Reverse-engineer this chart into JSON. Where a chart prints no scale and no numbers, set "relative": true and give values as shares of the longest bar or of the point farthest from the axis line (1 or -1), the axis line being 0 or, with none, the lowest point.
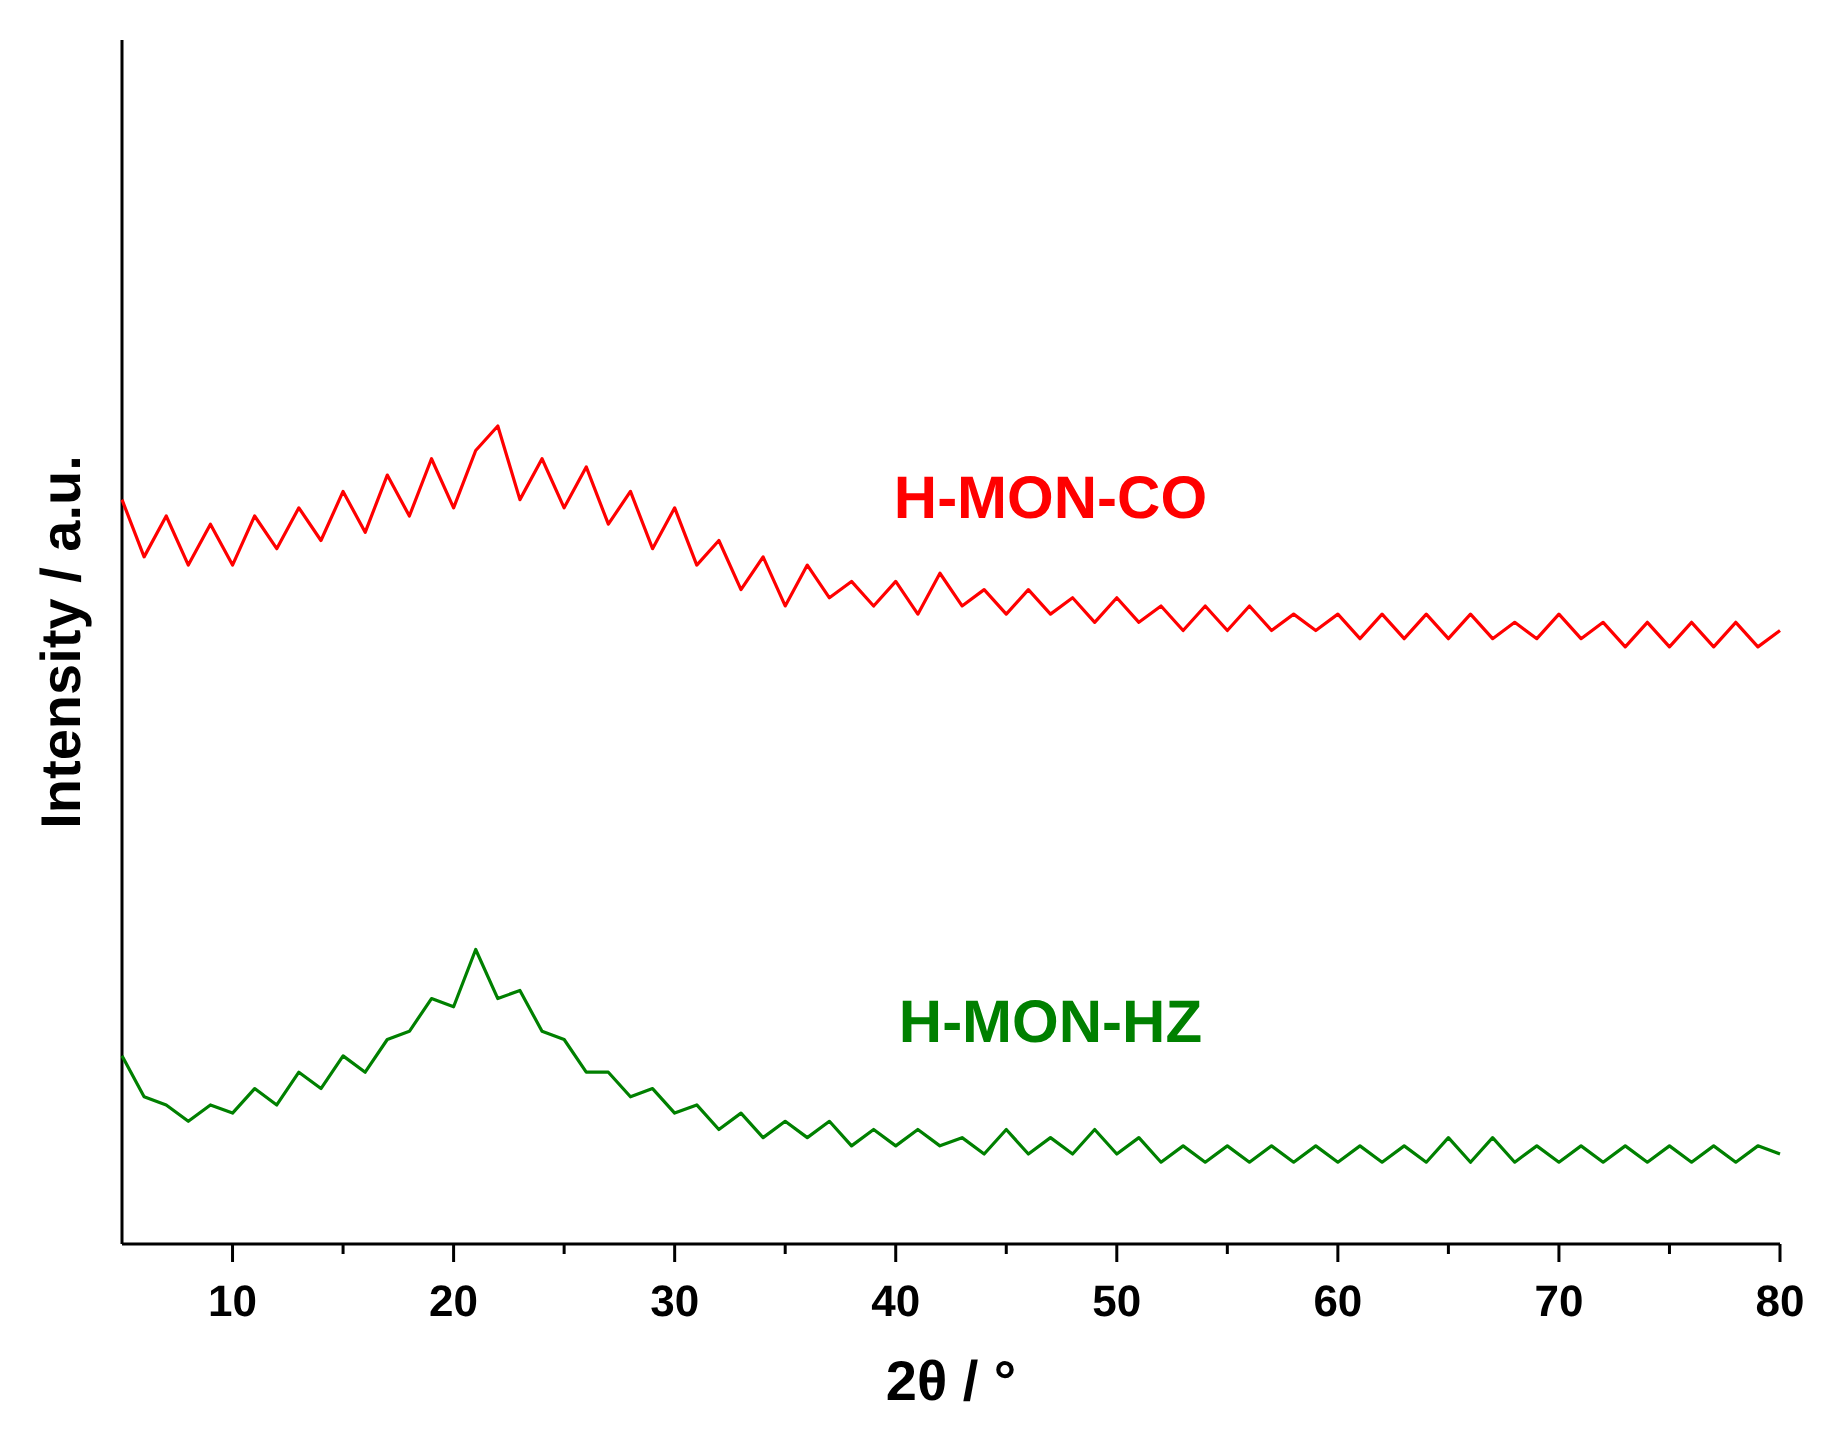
{
  "chart_data": {
    "type": "line",
    "relative": true,
    "xlabel": "2θ / °",
    "ylabel": "Intensity / a.u.",
    "xlim": [
      5,
      80
    ],
    "xticks": [
      10,
      {
        "value": 15,
        "label": null
      },
      20,
      {
        "value": 25,
        "label": null
      },
      30,
      {
        "value": 35,
        "label": null
      },
      40,
      {
        "value": 45,
        "label": null
      },
      50,
      {
        "value": 55,
        "label": null
      },
      60,
      {
        "value": 65,
        "label": null
      },
      70,
      {
        "value": 75,
        "label": null
      },
      80
    ],
    "x": [
      5,
      6,
      7,
      8,
      9,
      10,
      11,
      12,
      13,
      14,
      15,
      16,
      17,
      18,
      19,
      20,
      21,
      22,
      23,
      24,
      25,
      26,
      27,
      28,
      29,
      30,
      31,
      32,
      33,
      34,
      35,
      36,
      37,
      38,
      39,
      40,
      41,
      42,
      43,
      44,
      45,
      46,
      47,
      48,
      49,
      50,
      51,
      52,
      53,
      54,
      55,
      56,
      57,
      58,
      59,
      60,
      61,
      62,
      63,
      64,
      65,
      66,
      67,
      68,
      69,
      70,
      71,
      72,
      73,
      74,
      75,
      76,
      77,
      78,
      79,
      80
    ],
    "series": [
      {
        "name": "H-MON-CO",
        "color": "#ff0000",
        "values": [
          0.91,
          0.84,
          0.89,
          0.83,
          0.88,
          0.83,
          0.89,
          0.85,
          0.9,
          0.86,
          0.92,
          0.87,
          0.94,
          0.89,
          0.96,
          0.9,
          0.97,
          1.0,
          0.91,
          0.96,
          0.9,
          0.95,
          0.88,
          0.92,
          0.85,
          0.9,
          0.83,
          0.86,
          0.8,
          0.84,
          0.78,
          0.83,
          0.79,
          0.81,
          0.78,
          0.81,
          0.77,
          0.82,
          0.78,
          0.8,
          0.77,
          0.8,
          0.77,
          0.79,
          0.76,
          0.79,
          0.76,
          0.78,
          0.75,
          0.78,
          0.75,
          0.78,
          0.75,
          0.77,
          0.75,
          0.77,
          0.74,
          0.77,
          0.74,
          0.77,
          0.74,
          0.77,
          0.74,
          0.76,
          0.74,
          0.77,
          0.74,
          0.76,
          0.73,
          0.76,
          0.73,
          0.76,
          0.73,
          0.76,
          0.73,
          0.75
        ]
      },
      {
        "name": "H-MON-HZ",
        "color": "#008000",
        "values": [
          0.23,
          0.18,
          0.17,
          0.15,
          0.17,
          0.16,
          0.19,
          0.17,
          0.21,
          0.19,
          0.23,
          0.21,
          0.25,
          0.26,
          0.3,
          0.29,
          0.36,
          0.3,
          0.31,
          0.26,
          0.25,
          0.21,
          0.21,
          0.18,
          0.19,
          0.16,
          0.17,
          0.14,
          0.16,
          0.13,
          0.15,
          0.13,
          0.15,
          0.12,
          0.14,
          0.12,
          0.14,
          0.12,
          0.13,
          0.11,
          0.14,
          0.11,
          0.13,
          0.11,
          0.14,
          0.11,
          0.13,
          0.1,
          0.12,
          0.1,
          0.12,
          0.1,
          0.12,
          0.1,
          0.12,
          0.1,
          0.12,
          0.1,
          0.12,
          0.1,
          0.13,
          0.1,
          0.13,
          0.1,
          0.12,
          0.1,
          0.12,
          0.1,
          0.12,
          0.1,
          0.12,
          0.1,
          0.12,
          0.1,
          0.12,
          0.11
        ]
      }
    ]
  }
}
